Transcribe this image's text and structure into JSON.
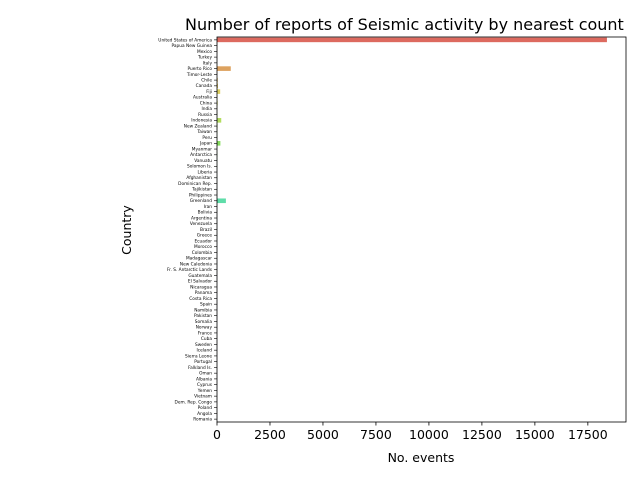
{
  "chart_data": {
    "type": "bar",
    "orientation": "horizontal",
    "title": "Number of reports of Seismic activity by nearest count",
    "xlabel": "No. events",
    "ylabel": "Country",
    "xlim": [
      0,
      19300
    ],
    "xticks": [
      0,
      2500,
      5000,
      7500,
      10000,
      12500,
      15000,
      17500
    ],
    "xtick_labels": [
      "0",
      "2500",
      "5000",
      "7500",
      "10000",
      "12500",
      "15000",
      "17500"
    ],
    "grid": false,
    "legend": "none",
    "categories": [
      "United States of America",
      "Papua New Guinea",
      "Mexico",
      "Turkey",
      "Italy",
      "Puerto Rico",
      "Timor-Leste",
      "Chile",
      "Canada",
      "Fiji",
      "Australia",
      "China",
      "India",
      "Russia",
      "Indonesia",
      "New Zealand",
      "Taiwan",
      "Peru",
      "Japan",
      "Myanmar",
      "Antarctica",
      "Vanuatu",
      "Solomon Is.",
      "Liberia",
      "Afghanistan",
      "Dominican Rep.",
      "Tajikistan",
      "Philippines",
      "Greenland",
      "Iran",
      "Bolivia",
      "Argentina",
      "Venezuela",
      "Brazil",
      "Greece",
      "Ecuador",
      "Morocco",
      "Colombia",
      "Madagascar",
      "New Caledonia",
      "Fr. S. Antarctic Lands",
      "Guatemala",
      "El Salvador",
      "Nicaragua",
      "Panama",
      "Costa Rica",
      "Spain",
      "Namibia",
      "Pakistan",
      "Somalia",
      "Norway",
      "France",
      "Cuba",
      "Sweden",
      "Iceland",
      "Sierra Leone",
      "Portugal",
      "Falkland Is.",
      "Oman",
      "Albania",
      "Cyprus",
      "Yemen",
      "Vietnam",
      "Dem. Rep. Congo",
      "Poland",
      "Angola",
      "Romania"
    ],
    "values": [
      18400,
      8,
      10,
      5,
      4,
      650,
      6,
      35,
      45,
      150,
      20,
      30,
      8,
      15,
      200,
      25,
      12,
      10,
      160,
      5,
      12,
      8,
      6,
      2,
      6,
      3,
      4,
      5,
      420,
      5,
      3,
      4,
      3,
      2,
      4,
      3,
      2,
      3,
      1,
      4,
      3,
      2,
      2,
      2,
      1,
      2,
      1,
      1,
      1,
      1,
      1,
      1,
      1,
      1,
      1,
      1,
      1,
      1,
      1,
      1,
      1,
      1,
      1,
      1,
      1,
      1,
      1
    ]
  }
}
